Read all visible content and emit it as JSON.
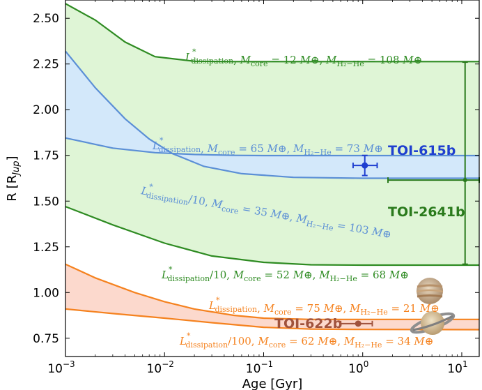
{
  "chart_data": {
    "type": "line",
    "xscale": "log",
    "xlim": [
      0.001,
      15
    ],
    "ylim": [
      0.65,
      2.6
    ],
    "xlabel": "Age [Gyr]",
    "ylabel_main": "R [R",
    "ylabel_sub": "Jup",
    "ylabel_close": "]",
    "x_ticks": [
      {
        "value": 0.001,
        "base": "10",
        "exp": "−3"
      },
      {
        "value": 0.01,
        "base": "10",
        "exp": "−2"
      },
      {
        "value": 0.1,
        "base": "10",
        "exp": "−1"
      },
      {
        "value": 1,
        "base": "10",
        "exp": "0"
      },
      {
        "value": 10,
        "base": "10",
        "exp": "1"
      }
    ],
    "y_ticks": [
      {
        "value": 0.75,
        "label": "0.75"
      },
      {
        "value": 1.0,
        "label": "1.00"
      },
      {
        "value": 1.25,
        "label": "1.25"
      },
      {
        "value": 1.5,
        "label": "1.50"
      },
      {
        "value": 1.75,
        "label": "1.75"
      },
      {
        "value": 2.0,
        "label": "2.00"
      },
      {
        "value": 2.25,
        "label": "2.25"
      },
      {
        "value": 2.5,
        "label": "2.50"
      }
    ],
    "bands": [
      {
        "color": "#2e8b22",
        "fill": "#dff5d6",
        "upper": {
          "x": [
            0.001,
            0.002,
            0.004,
            0.008,
            0.02,
            0.05,
            15
          ],
          "y": [
            2.58,
            2.49,
            2.37,
            2.29,
            2.265,
            2.263,
            2.263
          ]
        },
        "lower": {
          "x": [
            0.001,
            0.003,
            0.01,
            0.03,
            0.1,
            0.3,
            1,
            15
          ],
          "y": [
            1.47,
            1.37,
            1.27,
            1.2,
            1.165,
            1.152,
            1.15,
            1.15
          ]
        }
      },
      {
        "color": "#5b8fd6",
        "fill": "#d3e8fa",
        "upper": {
          "x": [
            0.001,
            0.003,
            0.008,
            0.02,
            0.05,
            0.1,
            15
          ],
          "y": [
            1.845,
            1.79,
            1.765,
            1.755,
            1.75,
            1.749,
            1.749
          ]
        },
        "lower": {
          "x": [
            0.001,
            0.002,
            0.004,
            0.007,
            0.012,
            0.025,
            0.06,
            0.2,
            1,
            15
          ],
          "y": [
            2.32,
            2.12,
            1.95,
            1.84,
            1.76,
            1.69,
            1.65,
            1.63,
            1.625,
            1.625
          ]
        }
      },
      {
        "color": "#f5821f",
        "fill": "#fcd9cd",
        "upper": {
          "x": [
            0.001,
            0.002,
            0.005,
            0.01,
            0.02,
            0.05,
            0.1,
            0.3,
            15
          ],
          "y": [
            1.155,
            1.08,
            1.0,
            0.95,
            0.91,
            0.875,
            0.86,
            0.853,
            0.853
          ]
        },
        "lower": {
          "x": [
            0.001,
            0.003,
            0.01,
            0.03,
            0.1,
            0.3,
            1,
            15
          ],
          "y": [
            0.91,
            0.885,
            0.86,
            0.835,
            0.81,
            0.8,
            0.798,
            0.797
          ]
        }
      }
    ],
    "points": [
      {
        "name": "TOI-615b",
        "x": 1.05,
        "y": 1.695,
        "xerr": [
          0.25,
          0.35
        ],
        "yerr": [
          0.055,
          0.055
        ],
        "color": "#1f3fd0"
      },
      {
        "name": "TOI-2641b",
        "x": 10.8,
        "y": 1.615,
        "xerr": [
          9.0,
          4.2
        ],
        "yerr": [
          0.46,
          0.645
        ],
        "color": "#2a7a1c"
      },
      {
        "name": "TOI-622b",
        "x": 0.9,
        "y": 0.83,
        "xerr": [
          0.3,
          0.35
        ],
        "yerr": [
          0,
          0
        ],
        "color": "#a0523d"
      }
    ],
    "annotations": [
      {
        "id": "g-top",
        "color": "#2e8b22",
        "L": "L",
        "star": "*",
        "Lsub": "dissipation",
        "frac": "",
        "mc": "= 12",
        "mh": "= 108"
      },
      {
        "id": "b-top",
        "color": "#5b8fd6",
        "L": "L",
        "star": "*",
        "Lsub": "dissipation",
        "frac": "",
        "mc": "= 65",
        "mh": "= 73"
      },
      {
        "id": "b-bot",
        "color": "#5b8fd6",
        "L": "L",
        "star": "*",
        "Lsub": "dissipation",
        "frac": "/10",
        "mc": "= 35",
        "mh": "= 103"
      },
      {
        "id": "g-bot",
        "color": "#2e8b22",
        "L": "L",
        "star": "*",
        "Lsub": "dissipation",
        "frac": "/10",
        "mc": "= 52",
        "mh": "= 68"
      },
      {
        "id": "o-top",
        "color": "#f5821f",
        "L": "L",
        "star": "*",
        "Lsub": "dissipation",
        "frac": "",
        "mc": "= 75",
        "mh": "= 21"
      },
      {
        "id": "o-bot",
        "color": "#f5821f",
        "L": "L",
        "star": "*",
        "Lsub": "dissipation",
        "frac": "/100",
        "mc": "= 62",
        "mh": "= 34"
      }
    ],
    "annotation_terms": {
      "mcore": "M",
      "mcore_sub": "core",
      "mh": "M",
      "mh_sub": "H₂−He",
      "earth": "M⊕"
    }
  }
}
